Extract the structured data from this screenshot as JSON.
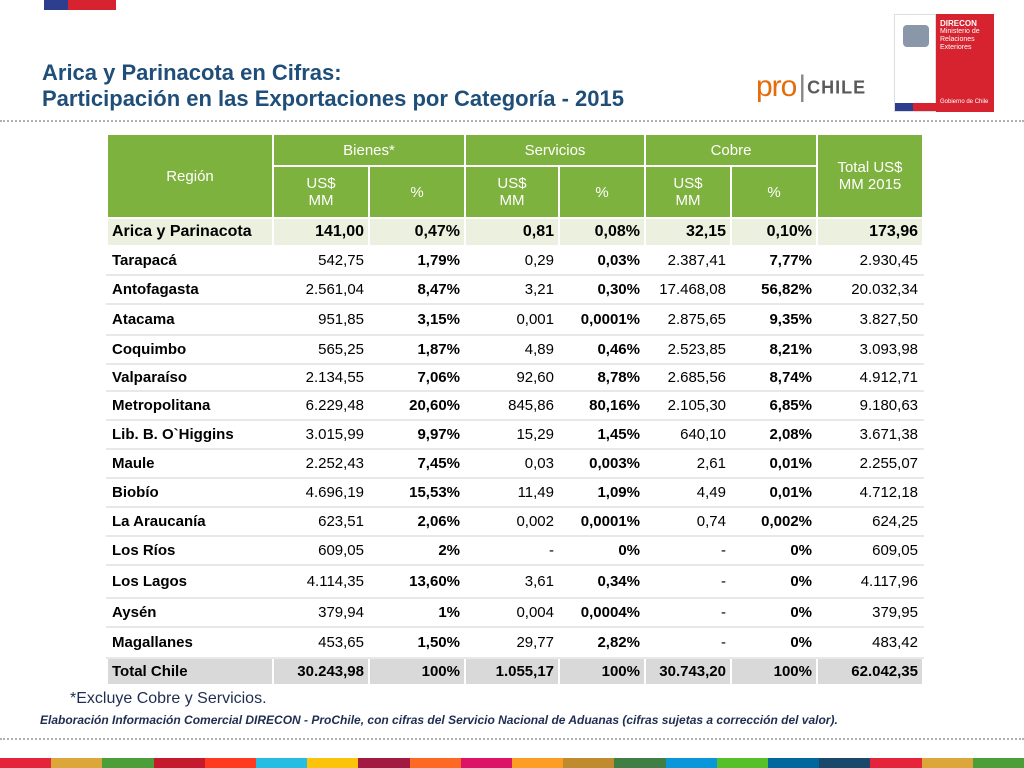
{
  "title": {
    "line1": "Arica y Parinacota en Cifras:",
    "line2": "Participación en las Exportaciones por Categoría - 2015"
  },
  "logo": {
    "pro": "pro",
    "sep": "|",
    "chile": "CHILE"
  },
  "gov_badge": {
    "name": "DIRECON",
    "ministry": "Ministerio de Relaciones Exteriores",
    "gobierno": "Gobierno de Chile"
  },
  "table": {
    "headers": {
      "region": "Región",
      "bienes": "Bienes*",
      "servicios": "Servicios",
      "cobre": "Cobre",
      "total": "Total US$ MM 2015",
      "usd": "US$ MM",
      "pct": "%"
    },
    "rows": [
      {
        "region": "Arica y Parinacota",
        "b_usd": "141,00",
        "b_pct": "0,47%",
        "s_usd": "0,81",
        "s_pct": "0,08%",
        "c_usd": "32,15",
        "c_pct": "0,10%",
        "total": "173,96"
      },
      {
        "region": "Tarapacá",
        "b_usd": "542,75",
        "b_pct": "1,79%",
        "s_usd": "0,29",
        "s_pct": "0,03%",
        "c_usd": "2.387,41",
        "c_pct": "7,77%",
        "total": "2.930,45"
      },
      {
        "region": "Antofagasta",
        "b_usd": "2.561,04",
        "b_pct": "8,47%",
        "s_usd": "3,21",
        "s_pct": "0,30%",
        "c_usd": "17.468,08",
        "c_pct": "56,82%",
        "total": "20.032,34"
      },
      {
        "region": "Atacama",
        "b_usd": "951,85",
        "b_pct": "3,15%",
        "s_usd": "0,001",
        "s_pct": "0,0001%",
        "c_usd": "2.875,65",
        "c_pct": "9,35%",
        "total": "3.827,50"
      },
      {
        "region": "Coquimbo",
        "b_usd": "565,25",
        "b_pct": "1,87%",
        "s_usd": "4,89",
        "s_pct": "0,46%",
        "c_usd": "2.523,85",
        "c_pct": "8,21%",
        "total": "3.093,98"
      },
      {
        "region": "Valparaíso",
        "b_usd": "2.134,55",
        "b_pct": "7,06%",
        "s_usd": "92,60",
        "s_pct": "8,78%",
        "c_usd": "2.685,56",
        "c_pct": "8,74%",
        "total": "4.912,71"
      },
      {
        "region": "Metropolitana",
        "b_usd": "6.229,48",
        "b_pct": "20,60%",
        "s_usd": "845,86",
        "s_pct": "80,16%",
        "c_usd": "2.105,30",
        "c_pct": "6,85%",
        "total": "9.180,63"
      },
      {
        "region": "Lib. B. O`Higgins",
        "b_usd": "3.015,99",
        "b_pct": "9,97%",
        "s_usd": "15,29",
        "s_pct": "1,45%",
        "c_usd": "640,10",
        "c_pct": "2,08%",
        "total": "3.671,38"
      },
      {
        "region": "Maule",
        "b_usd": "2.252,43",
        "b_pct": "7,45%",
        "s_usd": "0,03",
        "s_pct": "0,003%",
        "c_usd": "2,61",
        "c_pct": "0,01%",
        "total": "2.255,07"
      },
      {
        "region": "Biobío",
        "b_usd": "4.696,19",
        "b_pct": "15,53%",
        "s_usd": "11,49",
        "s_pct": "1,09%",
        "c_usd": "4,49",
        "c_pct": "0,01%",
        "total": "4.712,18"
      },
      {
        "region": "La Araucanía",
        "b_usd": "623,51",
        "b_pct": "2,06%",
        "s_usd": "0,002",
        "s_pct": "0,0001%",
        "c_usd": "0,74",
        "c_pct": "0,002%",
        "total": "624,25"
      },
      {
        "region": "Los Ríos",
        "b_usd": "609,05",
        "b_pct": "2%",
        "s_usd": "-",
        "s_pct": "0%",
        "c_usd": "-",
        "c_pct": "0%",
        "total": "609,05"
      },
      {
        "region": "Los Lagos",
        "b_usd": "4.114,35",
        "b_pct": "13,60%",
        "s_usd": "3,61",
        "s_pct": "0,34%",
        "c_usd": "-",
        "c_pct": "0%",
        "total": "4.117,96"
      },
      {
        "region": "Aysén",
        "b_usd": "379,94",
        "b_pct": "1%",
        "s_usd": "0,004",
        "s_pct": "0,0004%",
        "c_usd": "-",
        "c_pct": "0%",
        "total": "379,95"
      },
      {
        "region": "Magallanes",
        "b_usd": "453,65",
        "b_pct": "1,50%",
        "s_usd": "29,77",
        "s_pct": "2,82%",
        "c_usd": "-",
        "c_pct": "0%",
        "total": "483,42"
      }
    ],
    "total_row": {
      "region": "Total Chile",
      "b_usd": "30.243,98",
      "b_pct": "100%",
      "s_usd": "1.055,17",
      "s_pct": "100%",
      "c_usd": "30.743,20",
      "c_pct": "100%",
      "total": "62.042,35"
    }
  },
  "footnote": "*Excluye Cobre y Servicios.",
  "source": "Elaboración Información Comercial DIRECON - ProChile, con cifras del Servicio Nacional de Aduanas (cifras sujetas a corrección del valor).",
  "colors": {
    "header_green": "#7eb23e",
    "title_blue": "#1f4e79",
    "total_gray": "#d9d9d9",
    "first_row": "#ebf1de"
  },
  "bottom_bar_colors": [
    "#e5243b",
    "#dda63a",
    "#4c9f38",
    "#c5192d",
    "#ff3a21",
    "#26bde2",
    "#fcc30b",
    "#a21942",
    "#fd6925",
    "#dd1367",
    "#fd9d24",
    "#bf8b2e",
    "#3f7e44",
    "#0a97d9",
    "#56c02b",
    "#00689d",
    "#19486a",
    "#e5243b",
    "#dda63a",
    "#4c9f38"
  ]
}
